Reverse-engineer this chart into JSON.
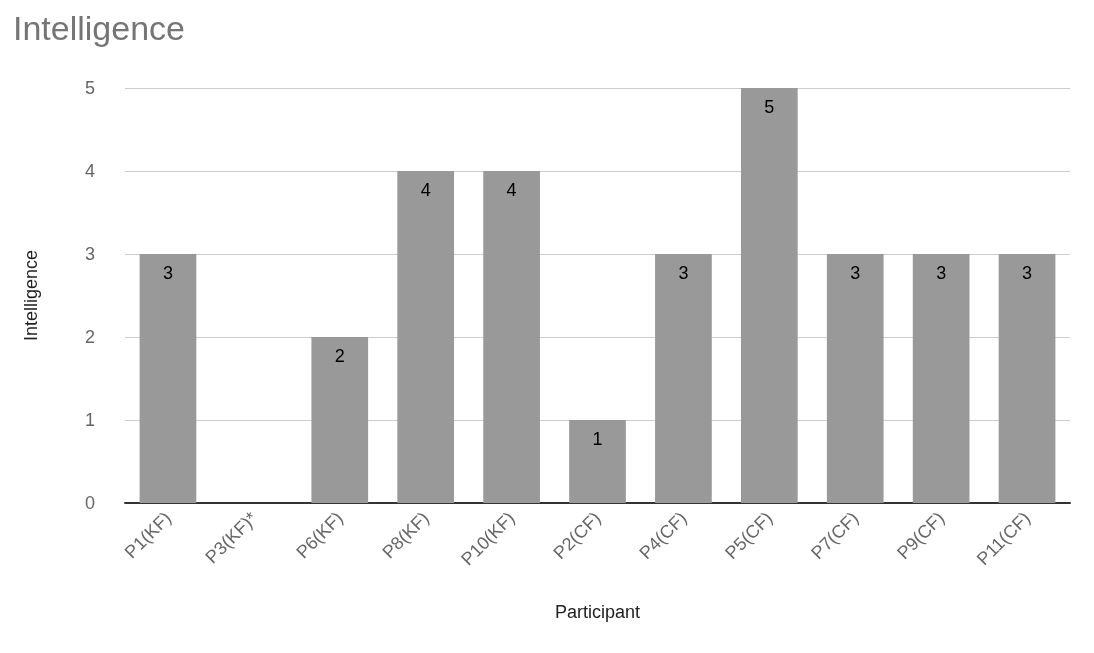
{
  "chart_data": {
    "type": "bar",
    "title": "Intelligence",
    "xlabel": "Participant",
    "ylabel": "Intelligence",
    "categories": [
      "P1(KF)",
      "P3(KF)*",
      "P6(KF)",
      "P8(KF)",
      "P10(KF)",
      "P2(CF)",
      "P4(CF)",
      "P5(CF)",
      "P7(CF)",
      "P9(CF)",
      "P11(CF)"
    ],
    "values": [
      3,
      null,
      2,
      4,
      4,
      1,
      3,
      5,
      3,
      3,
      3
    ],
    "color": "#999999",
    "ylim": [
      0,
      5
    ],
    "yticks": [
      0,
      1,
      2,
      3,
      4,
      5
    ],
    "grid": "y",
    "data_labels": true
  }
}
